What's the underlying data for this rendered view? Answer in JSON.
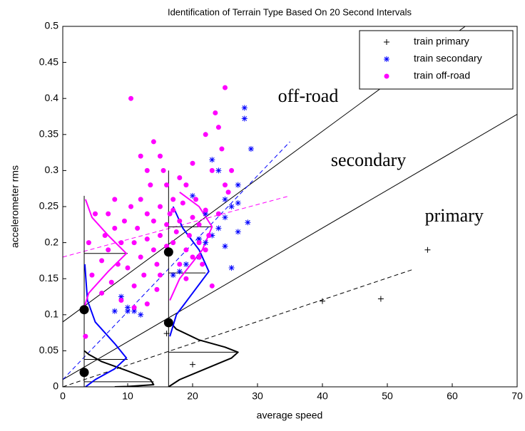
{
  "chart_data": {
    "type": "scatter",
    "title": "Identification of Terrain Type Based On 20 Second Intervals",
    "x_label": "average speed",
    "y_label": "accelerometer rms",
    "xlim": [
      0,
      70
    ],
    "ylim": [
      0,
      0.5
    ],
    "xticks": [
      0,
      10,
      20,
      30,
      40,
      50,
      60,
      70
    ],
    "yticks": [
      0,
      0.05,
      0.1,
      0.15,
      0.2,
      0.25,
      0.3,
      0.35,
      0.4,
      0.45,
      0.5
    ],
    "legend": "upper right",
    "series": [
      {
        "name": "train primary",
        "color": "#000000",
        "marker": "plus",
        "x": [
          16,
          20,
          40,
          49,
          56.2
        ],
        "values": [
          0.074,
          0.031,
          0.119,
          0.122,
          0.19
        ]
      },
      {
        "name": "train secondary",
        "color": "#0000ff",
        "marker": "star",
        "x": [
          8,
          9,
          10,
          11,
          12,
          10,
          20,
          18,
          17,
          19,
          21,
          22,
          23,
          24,
          25,
          25,
          26,
          27,
          27,
          28,
          28,
          29,
          26,
          24,
          23,
          22,
          21,
          25,
          27,
          28.5
        ],
        "values": [
          0.105,
          0.125,
          0.11,
          0.105,
          0.1,
          0.105,
          0.265,
          0.16,
          0.155,
          0.17,
          0.18,
          0.2,
          0.21,
          0.22,
          0.235,
          0.26,
          0.25,
          0.255,
          0.28,
          0.387,
          0.372,
          0.33,
          0.165,
          0.3,
          0.315,
          0.24,
          0.205,
          0.195,
          0.215,
          0.228
        ]
      },
      {
        "name": "train off-road",
        "color": "#ff00ff",
        "marker": "dot",
        "x": [
          3.5,
          4,
          5,
          4.5,
          6,
          6.5,
          7,
          7.5,
          8,
          8.5,
          9,
          9.5,
          10,
          10.5,
          11,
          11,
          11.5,
          12,
          12,
          12.5,
          13,
          13,
          13.5,
          14,
          14,
          14.5,
          15,
          15,
          15.5,
          16,
          16,
          16.5,
          17,
          17,
          17.5,
          18,
          18,
          18.5,
          19,
          19,
          19.5,
          20,
          20,
          20.5,
          21,
          21,
          21.5,
          22,
          22,
          22.5,
          23,
          23,
          23.5,
          24,
          24,
          24.5,
          25,
          25,
          25.5,
          26,
          14,
          15,
          13,
          10.5,
          12,
          16,
          9,
          8,
          18,
          20,
          22,
          21,
          19,
          6,
          13,
          11,
          17,
          15,
          14.5,
          7
        ],
        "values": [
          0.07,
          0.2,
          0.24,
          0.155,
          0.175,
          0.21,
          0.19,
          0.145,
          0.22,
          0.17,
          0.2,
          0.23,
          0.165,
          0.25,
          0.14,
          0.2,
          0.22,
          0.18,
          0.26,
          0.155,
          0.24,
          0.205,
          0.28,
          0.19,
          0.23,
          0.17,
          0.25,
          0.21,
          0.3,
          0.195,
          0.225,
          0.24,
          0.26,
          0.2,
          0.215,
          0.17,
          0.23,
          0.255,
          0.19,
          0.28,
          0.21,
          0.235,
          0.18,
          0.26,
          0.2,
          0.225,
          0.17,
          0.245,
          0.19,
          0.21,
          0.14,
          0.3,
          0.38,
          0.36,
          0.24,
          0.33,
          0.415,
          0.28,
          0.27,
          0.3,
          0.34,
          0.32,
          0.3,
          0.4,
          0.32,
          0.28,
          0.12,
          0.26,
          0.29,
          0.31,
          0.35,
          0.18,
          0.15,
          0.13,
          0.115,
          0.11,
          0.245,
          0.155,
          0.135,
          0.24
        ]
      }
    ],
    "lines": [
      {
        "x": [
          0,
          62
        ],
        "y": [
          0.09,
          0.5
        ],
        "color": "#000000",
        "dash": "solid"
      },
      {
        "x": [
          0,
          70
        ],
        "y": [
          0.01,
          0.378
        ],
        "color": "#000000",
        "dash": "solid"
      },
      {
        "x": [
          0,
          54
        ],
        "y": [
          0.0,
          0.163
        ],
        "color": "#000000",
        "dash": "dashed"
      },
      {
        "x": [
          0,
          35
        ],
        "y": [
          0.01,
          0.34
        ],
        "color": "#0000ff",
        "dash": "dashed"
      },
      {
        "x": [
          0,
          35
        ],
        "y": [
          0.18,
          0.265
        ],
        "color": "#ff00ff",
        "dash": "dashed"
      },
      {
        "x": [
          3.3,
          3.3
        ],
        "y": [
          0,
          0.265
        ],
        "color": "#000000",
        "dash": "solid"
      },
      {
        "x": [
          16.3,
          16.3
        ],
        "y": [
          0,
          0.3
        ],
        "color": "#000000",
        "dash": "solid"
      },
      {
        "x": [
          3.3,
          14
        ],
        "y": [
          0.007,
          0.007
        ],
        "color": "#000000",
        "dash": "solid"
      },
      {
        "x": [
          3.3,
          10
        ],
        "y": [
          0.038,
          0.038
        ],
        "color": "#000000",
        "dash": "solid"
      },
      {
        "x": [
          3.3,
          10
        ],
        "y": [
          0.185,
          0.185
        ],
        "color": "#000000",
        "dash": "solid"
      },
      {
        "x": [
          16.3,
          27
        ],
        "y": [
          0.048,
          0.048
        ],
        "color": "#000000",
        "dash": "solid"
      },
      {
        "x": [
          16.3,
          22
        ],
        "y": [
          0.158,
          0.158
        ],
        "color": "#000000",
        "dash": "solid"
      },
      {
        "x": [
          16.3,
          23
        ],
        "y": [
          0.222,
          0.222
        ],
        "color": "#000000",
        "dash": "solid"
      },
      {
        "x": [
          3.3,
          4,
          6,
          10,
          13.5,
          14,
          10,
          8
        ],
        "y": [
          0.05,
          0.045,
          0.035,
          0.022,
          0.01,
          0.003,
          0.0005,
          0
        ],
        "color": "#000000",
        "dash": "curve"
      },
      {
        "x": [
          3.5,
          5,
          8,
          9.8,
          8,
          5,
          3.8,
          3.4
        ],
        "y": [
          0,
          0.01,
          0.025,
          0.04,
          0.06,
          0.09,
          0.12,
          0.17
        ],
        "color": "#0000ff",
        "dash": "curve"
      },
      {
        "x": [
          3.3,
          4,
          7,
          9.8,
          7,
          4.5,
          3.5
        ],
        "y": [
          0.11,
          0.13,
          0.16,
          0.185,
          0.21,
          0.235,
          0.26
        ],
        "color": "#ff00ff",
        "dash": "curve"
      },
      {
        "x": [
          16.3,
          18,
          22,
          26,
          27,
          25,
          21,
          17.5,
          16.5
        ],
        "y": [
          0,
          0.01,
          0.025,
          0.04,
          0.048,
          0.055,
          0.065,
          0.08,
          0.09
        ],
        "color": "#000000",
        "dash": "curve"
      },
      {
        "x": [
          16.5,
          17.5,
          20,
          22.5,
          21,
          18.5,
          17
        ],
        "y": [
          0.07,
          0.1,
          0.13,
          0.16,
          0.19,
          0.22,
          0.25
        ],
        "color": "#0000ff",
        "dash": "curve"
      },
      {
        "x": [
          16.5,
          18,
          21.5,
          23,
          21,
          18
        ],
        "y": [
          0.12,
          0.15,
          0.19,
          0.222,
          0.25,
          0.27
        ],
        "color": "#ff00ff",
        "dash": "curve"
      }
    ],
    "means": {
      "x": [
        3.3,
        3.3,
        16.3,
        16.3
      ],
      "values": [
        0.02,
        0.107,
        0.187,
        0.089
      ],
      "color": "#000000"
    },
    "annotations": [
      {
        "text": "off-road",
        "x": 37.8,
        "y": 0.401
      },
      {
        "text": "secondary",
        "x": 47.1,
        "y": 0.312
      },
      {
        "text": "primary",
        "x": 60.3,
        "y": 0.235
      }
    ]
  }
}
